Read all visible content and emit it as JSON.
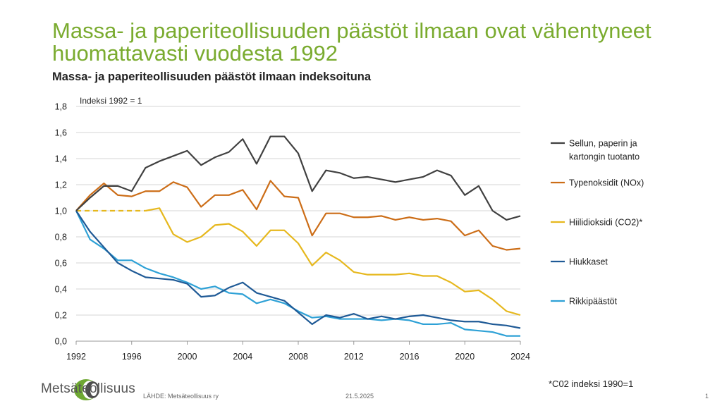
{
  "title": "Massa- ja paperiteollisuuden päästöt ilmaan ovat vähentyneet huomattavasti vuodesta 1992",
  "subtitle": "Massa- ja paperiteollisuuden päästöt ilmaan indeksoituna",
  "footer": {
    "logo_text": "Metsäteollisuus",
    "source": "LÄHDE: Metsäteollisuus ry",
    "date": "21.5.2025",
    "page_number": "1",
    "note": "*C02 indeksi 1990=1"
  },
  "colors": {
    "title": "#7aab2f",
    "logo_green": "#6ea832",
    "logo_gray": "#4d4d4d"
  },
  "chart_data": {
    "type": "line",
    "annotation": "Indeksi 1992 = 1",
    "xlim": [
      1992,
      2024
    ],
    "ylim": [
      0,
      1.8
    ],
    "x_ticks": [
      "1992",
      "1996",
      "2000",
      "2004",
      "2008",
      "2012",
      "2016",
      "2020",
      "2024"
    ],
    "y_ticks": [
      "0,0",
      "0,2",
      "0,4",
      "0,6",
      "0,8",
      "1,0",
      "1,2",
      "1,4",
      "1,6",
      "1,8"
    ],
    "grid": "horizontal",
    "legend_position": "right",
    "x": [
      1992,
      1993,
      1994,
      1995,
      1996,
      1997,
      1998,
      1999,
      2000,
      2001,
      2002,
      2003,
      2004,
      2005,
      2006,
      2007,
      2008,
      2009,
      2010,
      2011,
      2012,
      2013,
      2014,
      2015,
      2016,
      2017,
      2018,
      2019,
      2020,
      2021,
      2022,
      2023,
      2024
    ],
    "series": [
      {
        "name": "Sellun, paperin ja kartongin tuotanto",
        "legend_lines": [
          "Sellun, paperin ja",
          "kartongin tuotanto"
        ],
        "color": "#404040",
        "values": [
          1.0,
          1.1,
          1.19,
          1.19,
          1.15,
          1.33,
          1.38,
          1.42,
          1.46,
          1.35,
          1.41,
          1.45,
          1.55,
          1.36,
          1.57,
          1.57,
          1.44,
          1.15,
          1.31,
          1.29,
          1.25,
          1.26,
          1.24,
          1.22,
          1.24,
          1.26,
          1.31,
          1.27,
          1.12,
          1.19,
          1.0,
          0.93,
          0.96
        ]
      },
      {
        "name": "Typenoksidit (NOx)",
        "legend_lines": [
          "Typenoksidit (NOx)"
        ],
        "color": "#cc6d17",
        "values": [
          1.0,
          1.12,
          1.21,
          1.12,
          1.11,
          1.15,
          1.15,
          1.22,
          1.18,
          1.03,
          1.12,
          1.12,
          1.16,
          1.01,
          1.23,
          1.11,
          1.1,
          0.81,
          0.98,
          0.98,
          0.95,
          0.95,
          0.96,
          0.93,
          0.95,
          0.93,
          0.94,
          0.92,
          0.81,
          0.85,
          0.73,
          0.7,
          0.71
        ]
      },
      {
        "name": "Hiilidioksidi (CO2)*",
        "legend_lines": [
          "Hiilidioksidi (CO2)*"
        ],
        "color": "#e6b81e",
        "dashed_until": 1997,
        "values": [
          1.0,
          1.0,
          1.0,
          1.0,
          1.0,
          1.0,
          1.02,
          0.82,
          0.76,
          0.8,
          0.89,
          0.9,
          0.84,
          0.73,
          0.85,
          0.85,
          0.75,
          0.58,
          0.68,
          0.62,
          0.53,
          0.51,
          0.51,
          0.51,
          0.52,
          0.5,
          0.5,
          0.45,
          0.38,
          0.39,
          0.32,
          0.23,
          0.2
        ]
      },
      {
        "name": "Hiukkaset",
        "legend_lines": [
          "Hiukkaset"
        ],
        "color": "#1f5a96",
        "values": [
          1.0,
          0.84,
          0.72,
          0.6,
          0.54,
          0.49,
          0.48,
          0.47,
          0.44,
          0.34,
          0.35,
          0.41,
          0.45,
          0.37,
          0.34,
          0.31,
          0.22,
          0.13,
          0.2,
          0.18,
          0.21,
          0.17,
          0.19,
          0.17,
          0.19,
          0.2,
          0.18,
          0.16,
          0.15,
          0.15,
          0.13,
          0.12,
          0.1
        ]
      },
      {
        "name": "Rikkipäästöt",
        "legend_lines": [
          "Rikkipäästöt"
        ],
        "color": "#2ea1d6",
        "values": [
          1.0,
          0.78,
          0.71,
          0.62,
          0.62,
          0.56,
          0.52,
          0.49,
          0.45,
          0.4,
          0.42,
          0.37,
          0.36,
          0.29,
          0.32,
          0.29,
          0.23,
          0.18,
          0.19,
          0.17,
          0.17,
          0.17,
          0.16,
          0.17,
          0.16,
          0.13,
          0.13,
          0.14,
          0.09,
          0.08,
          0.07,
          0.04,
          0.04
        ]
      }
    ]
  }
}
